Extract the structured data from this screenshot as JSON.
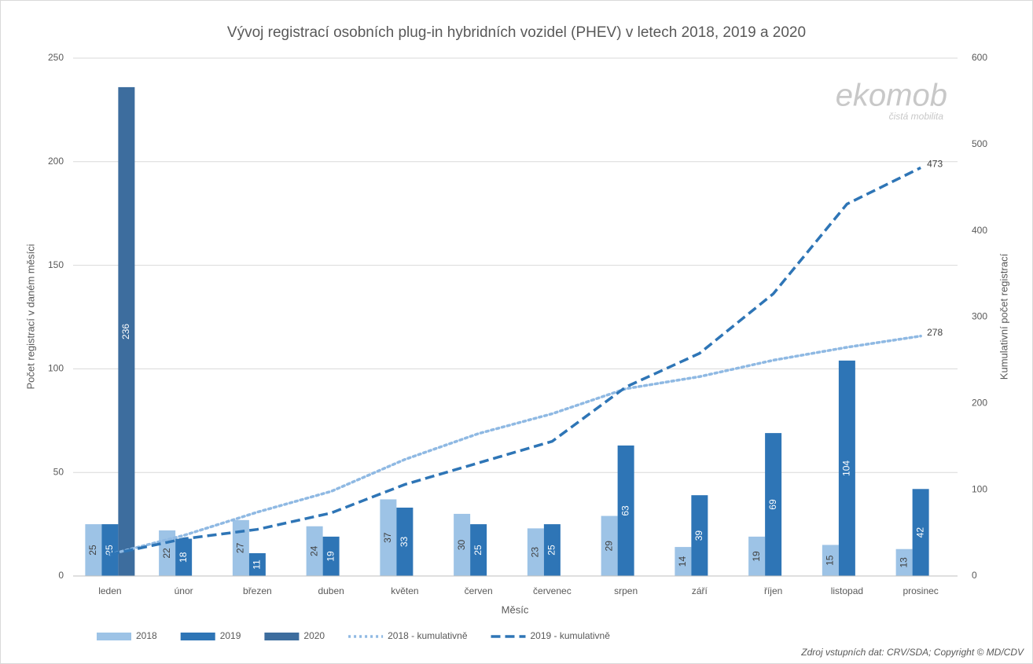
{
  "chart_data": {
    "type": "bar",
    "title": "Vývoj registrací osobních plug-in hybridních vozidel (PHEV) v letech 2018, 2019 a 2020",
    "xlabel": "Měsíc",
    "ylabel": "Počet registrací v daném měsíci",
    "y2label": "Kumulativní počet registrací",
    "source": "Zdroj vstupních dat: CRV/SDA; Copyright © MD/CDV",
    "watermark": "ekomob",
    "watermark_sub": "čistá mobilita",
    "categories": [
      "leden",
      "únor",
      "březen",
      "duben",
      "květen",
      "červen",
      "červenec",
      "srpen",
      "září",
      "říjen",
      "listopad",
      "prosinec"
    ],
    "series": [
      {
        "name": "2018",
        "type": "bar",
        "color": "#9dc3e6",
        "values": [
          25,
          22,
          27,
          24,
          37,
          30,
          23,
          29,
          14,
          19,
          15,
          13
        ]
      },
      {
        "name": "2019",
        "type": "bar",
        "color": "#2e75b6",
        "values": [
          25,
          18,
          11,
          19,
          33,
          25,
          25,
          63,
          39,
          69,
          104,
          42
        ]
      },
      {
        "name": "2020",
        "type": "bar",
        "color": "#3d6d9e",
        "values": [
          236,
          null,
          null,
          null,
          null,
          null,
          null,
          null,
          null,
          null,
          null,
          null
        ]
      },
      {
        "name": "2018 - kumulativně",
        "type": "line",
        "style": "dotted",
        "axis": "y2",
        "color": "#8fb9e3",
        "values": [
          25,
          47,
          74,
          98,
          135,
          165,
          188,
          217,
          231,
          250,
          265,
          278
        ]
      },
      {
        "name": "2019 - kumulativně",
        "type": "line",
        "style": "dashed",
        "axis": "y2",
        "color": "#2e75b6",
        "values": [
          25,
          43,
          54,
          73,
          106,
          131,
          156,
          219,
          258,
          327,
          431,
          473
        ]
      }
    ],
    "ylim": [
      0,
      250
    ],
    "yticks": [
      0,
      50,
      100,
      150,
      200,
      250
    ],
    "y2lim": [
      0,
      600
    ],
    "y2ticks": [
      0,
      100,
      200,
      300,
      400,
      500,
      600
    ],
    "grid": true,
    "legend": "bottom"
  }
}
